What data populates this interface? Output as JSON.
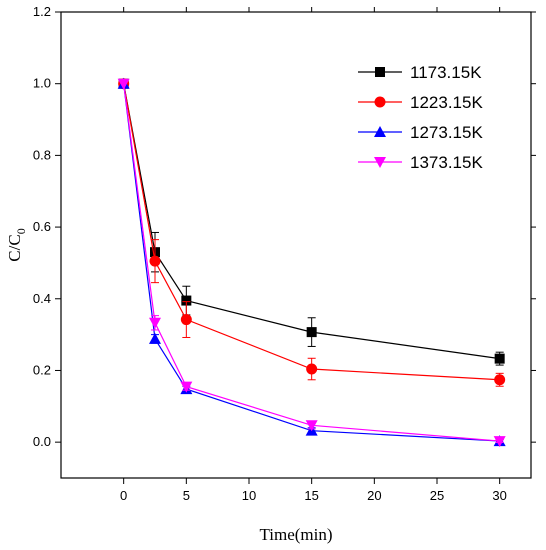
{
  "chart_data": {
    "type": "line",
    "title": "",
    "xlabel": "Time(min)",
    "ylabel": "C/C",
    "ylabel_sub": "0",
    "xlim": [
      -5,
      32.5
    ],
    "ylim": [
      -0.1,
      1.2
    ],
    "xticks": [
      0,
      5,
      10,
      15,
      20,
      25,
      30
    ],
    "yticks": [
      0.0,
      0.2,
      0.4,
      0.6,
      0.8,
      1.0,
      1.2
    ],
    "ytick_labels": [
      "0.0",
      "0.2",
      "0.4",
      "0.6",
      "0.8",
      "1.0",
      "1.2"
    ],
    "legend_position": "top-right",
    "x": [
      0,
      2.5,
      5,
      15,
      30
    ],
    "series": [
      {
        "name": "1173.15K",
        "color": "#000000",
        "marker": "square",
        "values": [
          1.0,
          0.53,
          0.395,
          0.307,
          0.233
        ],
        "errors": [
          0.0,
          0.055,
          0.04,
          0.04,
          0.018
        ]
      },
      {
        "name": "1223.15K",
        "color": "#ff0000",
        "marker": "circle",
        "values": [
          1.0,
          0.505,
          0.342,
          0.204,
          0.174
        ],
        "errors": [
          0.0,
          0.06,
          0.05,
          0.03,
          0.018
        ]
      },
      {
        "name": "1273.15K",
        "color": "#0000ff",
        "marker": "triangle-up",
        "values": [
          1.0,
          0.288,
          0.148,
          0.032,
          0.003
        ],
        "errors": [
          0.0,
          0.012,
          0.008,
          0.008,
          0.004
        ]
      },
      {
        "name": "1373.15K",
        "color": "#ff00ff",
        "marker": "triangle-down",
        "values": [
          1.0,
          0.333,
          0.155,
          0.047,
          0.003
        ],
        "errors": [
          0.0,
          0.02,
          0.01,
          0.01,
          0.004
        ]
      }
    ]
  }
}
